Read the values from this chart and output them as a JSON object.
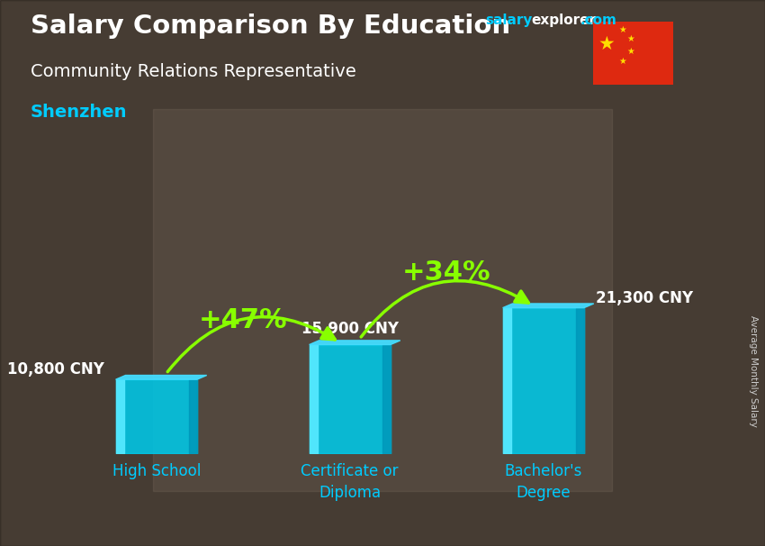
{
  "title_main": "Salary Comparison By Education",
  "title_sub": "Community Relations Representative",
  "title_city": "Shenzhen",
  "watermark_salary": "salary",
  "watermark_rest": "explorer.com",
  "ylabel_rotated": "Average Monthly Salary",
  "categories": [
    "High School",
    "Certificate or\nDiploma",
    "Bachelor's\nDegree"
  ],
  "values": [
    10800,
    15900,
    21300
  ],
  "value_labels": [
    "10,800 CNY",
    "15,900 CNY",
    "21,300 CNY"
  ],
  "pct_labels": [
    "+47%",
    "+34%"
  ],
  "bar_face_color": "#00c8e8",
  "bar_left_color": "#55e8ff",
  "bar_right_color": "#0099bb",
  "bar_top_color": "#44ddff",
  "bg_color": "#5a4a3a",
  "overlay_alpha": 0.45,
  "title_color": "#ffffff",
  "subtitle_color": "#ffffff",
  "city_color": "#00ccff",
  "value_label_color": "#ffffff",
  "pct_color": "#88ff00",
  "arrow_color": "#88ff00",
  "xticklabel_color": "#00ccff",
  "ylim": [
    0,
    28000
  ],
  "figsize": [
    8.5,
    6.06
  ],
  "dpi": 100
}
